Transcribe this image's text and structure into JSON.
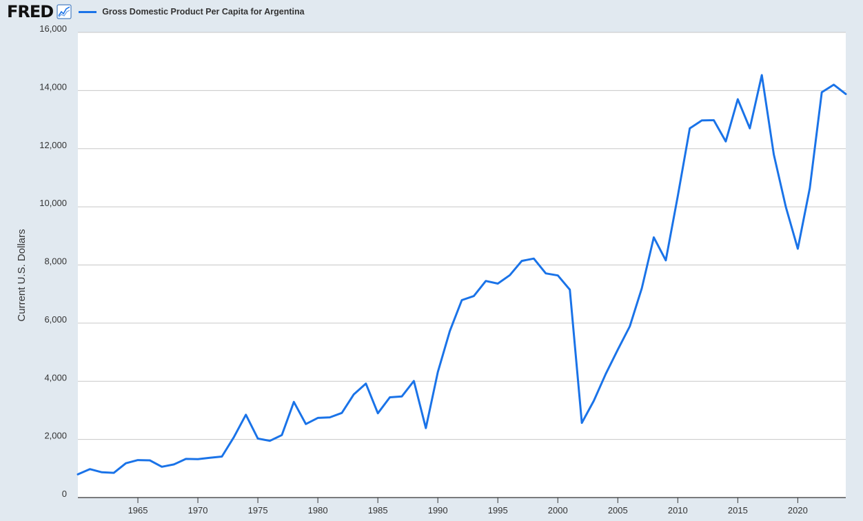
{
  "header": {
    "logo": "FRED",
    "logo_icon": "line-chart-icon"
  },
  "chart_data": {
    "type": "line",
    "title": "",
    "ylabel": "Current U.S. Dollars",
    "xlabel": "",
    "xlim": [
      1960,
      2024
    ],
    "ylim": [
      0,
      16000
    ],
    "y_ticks": [
      0,
      2000,
      4000,
      6000,
      8000,
      10000,
      12000,
      14000,
      16000
    ],
    "y_tick_labels": [
      "0",
      "2,000",
      "4,000",
      "6,000",
      "8,000",
      "10,000",
      "12,000",
      "14,000",
      "16,000"
    ],
    "x_ticks": [
      1965,
      1970,
      1975,
      1980,
      1985,
      1990,
      1995,
      2000,
      2005,
      2010,
      2015,
      2020
    ],
    "x_tick_labels": [
      "1965",
      "1970",
      "1975",
      "1980",
      "1985",
      "1990",
      "1995",
      "2000",
      "2005",
      "2010",
      "2015",
      "2020"
    ],
    "grid": true,
    "legend_position": "top",
    "colors": {
      "line": "#1a73e8",
      "grid": "#c7c7c7",
      "plot_bg": "#ffffff",
      "page_bg": "#e1e9f0"
    },
    "series": [
      {
        "name": "Gross Domestic Product Per Capita for Argentina",
        "x": [
          1960,
          1961,
          1962,
          1963,
          1964,
          1965,
          1966,
          1967,
          1968,
          1969,
          1970,
          1971,
          1972,
          1973,
          1974,
          1975,
          1976,
          1977,
          1978,
          1979,
          1980,
          1981,
          1982,
          1983,
          1984,
          1985,
          1986,
          1987,
          1988,
          1989,
          1990,
          1991,
          1992,
          1993,
          1994,
          1995,
          1996,
          1997,
          1998,
          1999,
          2000,
          2001,
          2002,
          2003,
          2004,
          2005,
          2006,
          2007,
          2008,
          2009,
          2010,
          2011,
          2012,
          2013,
          2014,
          2015,
          2016,
          2017,
          2018,
          2019,
          2020,
          2021,
          2022,
          2023,
          2024
        ],
        "values": [
          800,
          980,
          870,
          850,
          1180,
          1290,
          1280,
          1060,
          1140,
          1330,
          1320,
          1370,
          1410,
          2080,
          2850,
          2030,
          1950,
          2150,
          3290,
          2530,
          2740,
          2760,
          2910,
          3550,
          3920,
          2900,
          3450,
          3480,
          4010,
          2390,
          4320,
          5730,
          6790,
          6930,
          7450,
          7360,
          7650,
          8140,
          8220,
          7710,
          7640,
          7150,
          2570,
          3330,
          4260,
          5090,
          5890,
          7200,
          8950,
          8160,
          10370,
          12700,
          12970,
          12980,
          12250,
          13700,
          12700,
          14530,
          11800,
          10000,
          8560,
          10640,
          13940,
          14200,
          13880
        ]
      }
    ]
  }
}
